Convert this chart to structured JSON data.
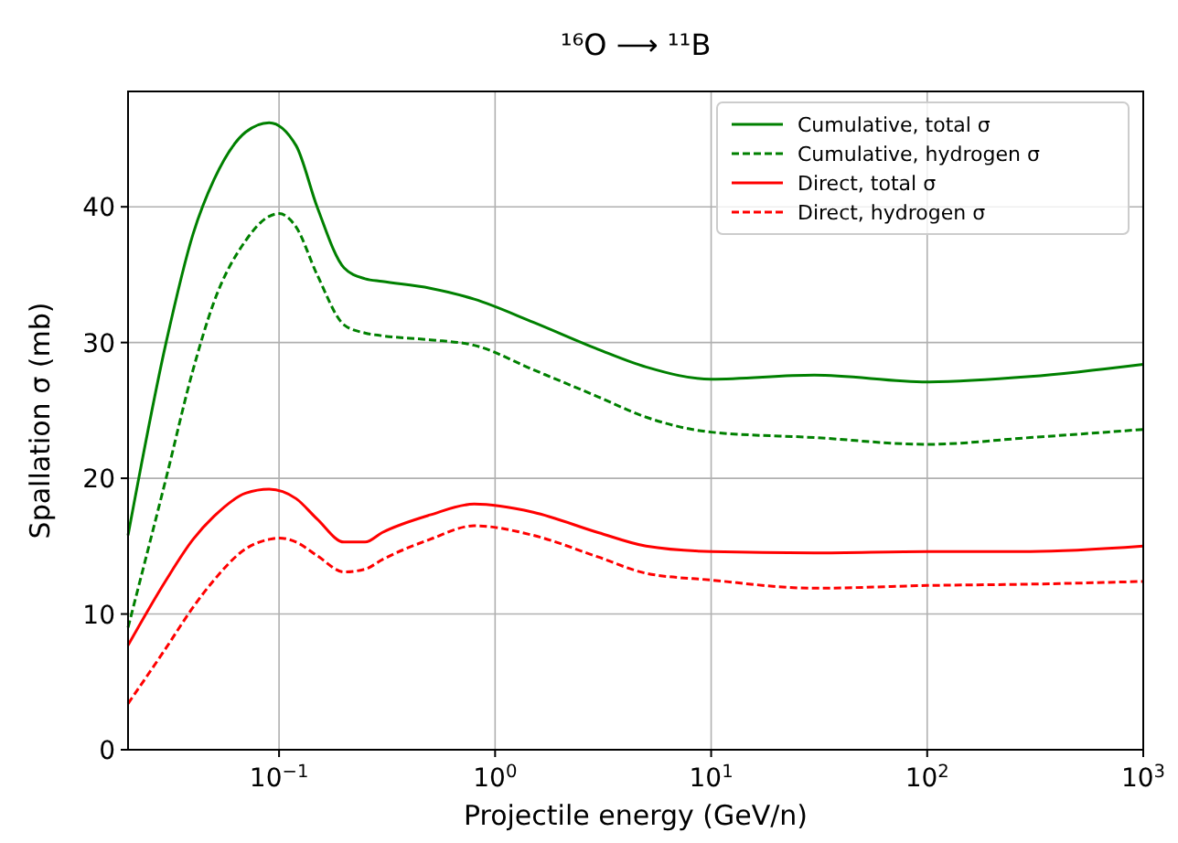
{
  "chart_data": {
    "type": "line",
    "title": "¹⁶O ⟶ ¹¹B",
    "xlabel": "Projectile energy (GeV/n)",
    "ylabel": "Spallation σ (mb)",
    "log": "x",
    "grid": true,
    "legend": "top right",
    "xlim": [
      0.02,
      1000
    ],
    "ylim": [
      0,
      48.5
    ],
    "xticks": [
      {
        "value": 0.1,
        "label": "10$^{−1}$"
      },
      {
        "value": 1,
        "label": "10$^{0}$"
      },
      {
        "value": 10,
        "label": "10$^{1}$"
      },
      {
        "value": 100,
        "label": "10$^{2}$"
      },
      {
        "value": 1000,
        "label": "10$^{3}$"
      }
    ],
    "yticks": [
      0,
      10,
      20,
      30,
      40
    ],
    "series": [
      {
        "name": "Cumulative, total σ",
        "color": "#008000",
        "line_style": "solid",
        "x": [
          0.02,
          0.03,
          0.04,
          0.05,
          0.07,
          0.09,
          0.12,
          0.15,
          0.2,
          0.25,
          0.3,
          0.5,
          0.8,
          1.5,
          3,
          5,
          10,
          30,
          100,
          300,
          1000
        ],
        "values": [
          15.8,
          30,
          38,
          42,
          45.5,
          46.2,
          44.5,
          40,
          35.5,
          34.7,
          34.5,
          34,
          33.2,
          31.5,
          29.5,
          28.2,
          27.3,
          27.6,
          27.1,
          27.5,
          28.4
        ]
      },
      {
        "name": "Cumulative, hydrogen σ",
        "color": "#008000",
        "line_style": "dashed",
        "x": [
          0.02,
          0.03,
          0.04,
          0.05,
          0.07,
          0.09,
          0.1,
          0.12,
          0.15,
          0.2,
          0.25,
          0.3,
          0.5,
          0.8,
          1.5,
          3,
          5,
          10,
          30,
          100,
          300,
          1000
        ],
        "values": [
          9,
          20,
          28,
          33,
          37.5,
          39.3,
          39.5,
          38.5,
          35,
          31.3,
          30.7,
          30.5,
          30.2,
          29.8,
          28,
          26,
          24.5,
          23.4,
          23,
          22.5,
          23,
          23.6
        ]
      },
      {
        "name": "Direct, total σ",
        "color": "#ff0000",
        "line_style": "solid",
        "x": [
          0.02,
          0.03,
          0.04,
          0.05,
          0.07,
          0.09,
          0.12,
          0.15,
          0.2,
          0.25,
          0.3,
          0.5,
          0.8,
          1.5,
          3,
          5,
          10,
          30,
          100,
          300,
          1000
        ],
        "values": [
          7.7,
          12.5,
          15.5,
          17.2,
          18.9,
          19.2,
          18.5,
          17,
          15.3,
          15.3,
          16,
          17.3,
          18.1,
          17.5,
          16,
          15,
          14.6,
          14.5,
          14.6,
          14.6,
          15
        ]
      },
      {
        "name": "Direct, hydrogen σ",
        "color": "#ff0000",
        "line_style": "dashed",
        "x": [
          0.02,
          0.03,
          0.04,
          0.05,
          0.07,
          0.09,
          0.1,
          0.12,
          0.15,
          0.2,
          0.25,
          0.3,
          0.5,
          0.8,
          1.5,
          3,
          5,
          10,
          30,
          100,
          300,
          1000
        ],
        "values": [
          3.4,
          7.5,
          10.5,
          12.5,
          14.8,
          15.5,
          15.6,
          15.3,
          14.3,
          13.1,
          13.3,
          14,
          15.5,
          16.5,
          15.8,
          14.2,
          13,
          12.5,
          11.9,
          12.1,
          12.2,
          12.4
        ]
      }
    ]
  }
}
